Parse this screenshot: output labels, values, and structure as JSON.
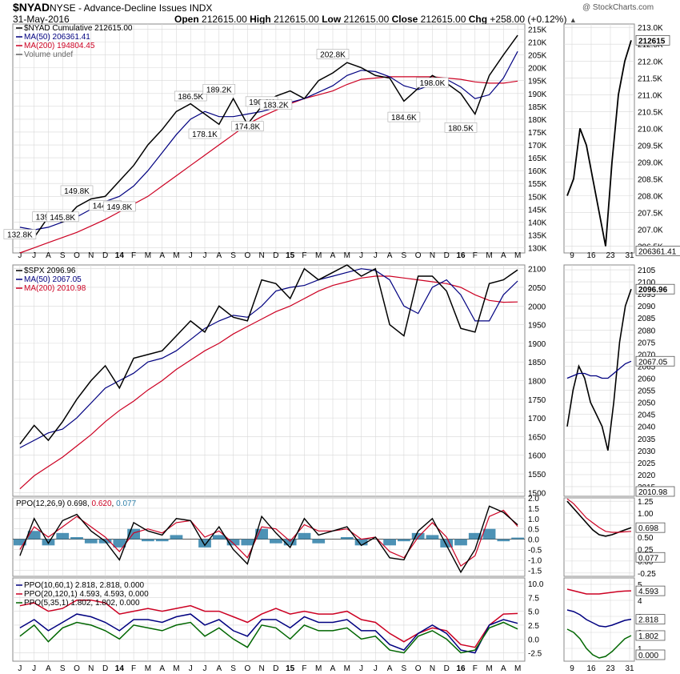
{
  "header": {
    "symbol": "$NYAD",
    "description": "NYSE - Advance-Decline Issues INDX",
    "brand": "@ StockCharts.com",
    "date": "31-May-2016",
    "open_label": "Open",
    "open": "212615.00",
    "high_label": "High",
    "high": "212615.00",
    "low_label": "Low",
    "low": "212615.00",
    "close_label": "Close",
    "close": "212615.00",
    "chg_label": "Chg",
    "chg": "+258.00 (+0.12%)"
  },
  "colors": {
    "price": "#000000",
    "ma50": "#000080",
    "ma200": "#cc0022",
    "down": "#cc0022",
    "hist": "#2e7fa8",
    "ppo_signal": "#cc0022",
    "ppo_green": "#006600",
    "grid": "#d8d8d8"
  },
  "x_axis_labels": [
    "J",
    "J",
    "A",
    "S",
    "O",
    "N",
    "D",
    "14",
    "F",
    "M",
    "A",
    "M",
    "J",
    "J",
    "A",
    "S",
    "O",
    "N",
    "D",
    "15",
    "F",
    "M",
    "A",
    "M",
    "J",
    "J",
    "A",
    "S",
    "O",
    "N",
    "D",
    "16",
    "F",
    "M",
    "A",
    "M"
  ],
  "detail_x_labels": [
    "9",
    "16",
    "23",
    "31"
  ],
  "panels": {
    "nyad": {
      "legend": [
        "$NYAD Cumulative 212615.00",
        "MA(50) 206361.41",
        "MA(200) 194804.45",
        "Volume undef"
      ],
      "annotations": [
        "132.8K",
        "139.6K",
        "145.8K",
        "149.8K",
        "144.0K",
        "149.8K",
        "186.5K",
        "178.1K",
        "189.2K",
        "174.8K",
        "190.6K",
        "183.2K",
        "202.8K",
        "184.6K",
        "198.0K",
        "180.5K"
      ],
      "y_ticks": [
        "215K",
        "210K",
        "205K",
        "200K",
        "195K",
        "190K",
        "185K",
        "180K",
        "175K",
        "170K",
        "165K",
        "160K",
        "155K",
        "150K",
        "145K",
        "140K",
        "135K",
        "130K"
      ],
      "detail_y_ticks": [
        "213.0K",
        "212.5K",
        "212.0K",
        "211.5K",
        "211.0K",
        "210.5K",
        "210.0K",
        "209.5K",
        "209.0K",
        "208.5K",
        "208.0K",
        "207.5K",
        "207.0K",
        "206.5K"
      ],
      "last_label": "212615",
      "ma50_label": "206361.41"
    },
    "spx": {
      "legend": [
        "$SPX 2096.96",
        "MA(50) 2067.05",
        "MA(200) 2010.98"
      ],
      "y_ticks": [
        "2100",
        "2050",
        "2000",
        "1950",
        "1900",
        "1850",
        "1800",
        "1750",
        "1700",
        "1650",
        "1600",
        "1550",
        "1500"
      ],
      "detail_y_ticks": [
        "2105",
        "2100",
        "2095",
        "2090",
        "2085",
        "2080",
        "2075",
        "2070",
        "2065",
        "2060",
        "2055",
        "2050",
        "2045",
        "2040",
        "2035",
        "2030",
        "2025",
        "2020",
        "2015"
      ],
      "last_label": "2096.96",
      "ma50_label": "2067.05",
      "ma200_label": "2010.98"
    },
    "ppo": {
      "legend_prefix": "PPO(12,26,9)",
      "v1": "0.698",
      "v2": "0.620",
      "v3": "0.077",
      "y_ticks": [
        "2.0",
        "1.5",
        "1.0",
        "0.5",
        "0.0",
        "-0.5",
        "-1.0",
        "-1.5"
      ],
      "detail_y_ticks": [
        "1.25",
        "1.00",
        "0.75",
        "0.50",
        "0.25",
        "0.00",
        "-0.25"
      ],
      "labels": [
        "0.698",
        "0.077"
      ]
    },
    "ppo3": {
      "legend": [
        {
          "prefix": "PPO(10,60,1)",
          "values": "2.818, 2.818, 0.000"
        },
        {
          "prefix": "PPO(20,120,1)",
          "values": "4.593, 4.593, 0.000"
        },
        {
          "prefix": "PPO(5,35,1)",
          "values": "1.802, 1.802, 0.000"
        }
      ],
      "y_ticks": [
        "10.0",
        "7.5",
        "5.0",
        "2.5",
        "0.0",
        "-2.5"
      ],
      "detail_y_ticks": [
        "5",
        "4",
        "3",
        "2",
        "1"
      ],
      "labels": [
        "4.593",
        "2.818",
        "1.802",
        "0.000"
      ]
    }
  },
  "chart_data": [
    {
      "type": "line",
      "title": "$NYAD Cumulative",
      "x": [
        "Jun 2013",
        "Jul 2013",
        "Aug 2013",
        "Sep 2013",
        "Oct 2013",
        "Nov 2013",
        "Dec 2013",
        "Jan 2014",
        "Feb 2014",
        "Mar 2014",
        "Apr 2014",
        "May 2014",
        "Jun 2014",
        "Jul 2014",
        "Aug 2014",
        "Sep 2014",
        "Oct 2014",
        "Nov 2014",
        "Dec 2014",
        "Jan 2015",
        "Feb 2015",
        "Mar 2015",
        "Apr 2015",
        "May 2015",
        "Jun 2015",
        "Jul 2015",
        "Aug 2015",
        "Sep 2015",
        "Oct 2015",
        "Nov 2015",
        "Dec 2015",
        "Jan 2016",
        "Feb 2016",
        "Mar 2016",
        "Apr 2016",
        "May 2016"
      ],
      "series": [
        {
          "name": "$NYAD Cumulative",
          "values": [
            137000,
            134000,
            142000,
            140000,
            146000,
            149000,
            150000,
            156000,
            162000,
            170000,
            176000,
            183000,
            186000,
            182000,
            178000,
            188000,
            178000,
            185000,
            189000,
            191000,
            188000,
            195000,
            198000,
            202000,
            200000,
            197000,
            196000,
            187000,
            192000,
            197000,
            194000,
            190000,
            182000,
            197000,
            205000,
            212600
          ]
        },
        {
          "name": "MA(50)",
          "values": [
            138000,
            137000,
            138000,
            140000,
            142000,
            145000,
            148000,
            150000,
            154000,
            160000,
            167000,
            174000,
            180000,
            183000,
            181000,
            181000,
            182000,
            183000,
            184500,
            186500,
            188000,
            190500,
            193000,
            197000,
            199000,
            198500,
            196500,
            193000,
            191500,
            193500,
            195500,
            192500,
            188000,
            189500,
            196000,
            206361
          ]
        },
        {
          "name": "MA(200)",
          "values": [
            128000,
            130000,
            132000,
            134000,
            136000,
            138500,
            141000,
            144000,
            147000,
            150000,
            154000,
            158000,
            162000,
            166000,
            170000,
            174000,
            178000,
            181000,
            183500,
            186000,
            188000,
            189500,
            191000,
            193500,
            195500,
            196000,
            196500,
            196500,
            196500,
            196500,
            196000,
            195500,
            194500,
            194000,
            194000,
            194804
          ]
        }
      ],
      "ylim": [
        128000,
        217000
      ],
      "annotations": [
        {
          "x": "Jun 2013",
          "y": 132800,
          "label": "132.8K"
        },
        {
          "x": "Aug 2013",
          "y": 139600,
          "label": "139.6K"
        },
        {
          "x": "Sep 2013",
          "y": 145800,
          "label": "145.8K"
        },
        {
          "x": "Oct 2013",
          "y": 149800,
          "label": "149.8K"
        },
        {
          "x": "Dec 2013",
          "y": 144000,
          "label": "144.0K"
        },
        {
          "x": "Jan 2014",
          "y": 149800,
          "label": "149.8K"
        },
        {
          "x": "Jun 2014",
          "y": 186500,
          "label": "186.5K"
        },
        {
          "x": "Jul 2014",
          "y": 178100,
          "label": "178.1K"
        },
        {
          "x": "Aug 2014",
          "y": 189200,
          "label": "189.2K"
        },
        {
          "x": "Oct 2014",
          "y": 174800,
          "label": "174.8K"
        },
        {
          "x": "Nov 2014",
          "y": 190600,
          "label": "190.6K"
        },
        {
          "x": "Dec 2014",
          "y": 183200,
          "label": "183.2K"
        },
        {
          "x": "Apr 2015",
          "y": 202800,
          "label": "202.8K"
        },
        {
          "x": "Sep 2015",
          "y": 184600,
          "label": "184.6K"
        },
        {
          "x": "Nov 2015",
          "y": 198000,
          "label": "198.0K"
        },
        {
          "x": "Jan 2016",
          "y": 180500,
          "label": "180.5K"
        }
      ]
    },
    {
      "type": "line",
      "title": "$SPX",
      "x": [
        "Jun 2013",
        "Jul 2013",
        "Aug 2013",
        "Sep 2013",
        "Oct 2013",
        "Nov 2013",
        "Dec 2013",
        "Jan 2014",
        "Feb 2014",
        "Mar 2014",
        "Apr 2014",
        "May 2014",
        "Jun 2014",
        "Jul 2014",
        "Aug 2014",
        "Sep 2014",
        "Oct 2014",
        "Nov 2014",
        "Dec 2014",
        "Jan 2015",
        "Feb 2015",
        "Mar 2015",
        "Apr 2015",
        "May 2015",
        "Jun 2015",
        "Jul 2015",
        "Aug 2015",
        "Sep 2015",
        "Oct 2015",
        "Nov 2015",
        "Dec 2015",
        "Jan 2016",
        "Feb 2016",
        "Mar 2016",
        "Apr 2016",
        "May 2016"
      ],
      "series": [
        {
          "name": "$SPX",
          "values": [
            1630,
            1680,
            1640,
            1690,
            1750,
            1800,
            1840,
            1780,
            1860,
            1870,
            1880,
            1920,
            1960,
            1930,
            2000,
            1970,
            1960,
            2070,
            2060,
            2020,
            2100,
            2070,
            2090,
            2110,
            2080,
            2100,
            1950,
            1920,
            2080,
            2080,
            2040,
            1940,
            1930,
            2060,
            2070,
            2096.96
          ]
        },
        {
          "name": "MA(50)",
          "values": [
            1620,
            1640,
            1660,
            1670,
            1700,
            1740,
            1780,
            1800,
            1820,
            1850,
            1860,
            1880,
            1910,
            1940,
            1960,
            1975,
            1970,
            2000,
            2040,
            2050,
            2055,
            2070,
            2080,
            2090,
            2100,
            2095,
            2070,
            2000,
            1980,
            2050,
            2070,
            2030,
            1960,
            1960,
            2030,
            2067.05
          ]
        },
        {
          "name": "MA(200)",
          "values": [
            1510,
            1545,
            1570,
            1595,
            1625,
            1655,
            1690,
            1720,
            1745,
            1775,
            1800,
            1830,
            1855,
            1880,
            1900,
            1925,
            1945,
            1965,
            1985,
            2000,
            2020,
            2040,
            2055,
            2065,
            2075,
            2080,
            2080,
            2075,
            2070,
            2065,
            2060,
            2050,
            2030,
            2015,
            2010,
            2010.98
          ]
        }
      ],
      "ylim": [
        1490,
        2110
      ]
    },
    {
      "type": "line",
      "title": "PPO(12,26,9)",
      "series": [
        {
          "name": "PPO(12,26,9)",
          "values": [
            -0.8,
            1.0,
            -0.2,
            0.9,
            1.2,
            0.4,
            -0.1,
            -1.0,
            0.8,
            0.4,
            0.2,
            1.0,
            0.9,
            -0.3,
            0.6,
            -0.5,
            -1.2,
            1.1,
            0.3,
            -0.4,
            1.0,
            0.2,
            0.4,
            0.6,
            -0.3,
            0.1,
            -0.9,
            -1.0,
            0.4,
            1.0,
            -0.3,
            -1.6,
            -0.5,
            1.6,
            1.3,
            0.698
          ]
        },
        {
          "name": "Signal",
          "values": [
            -0.5,
            0.6,
            0.1,
            0.6,
            1.1,
            0.6,
            0.1,
            -0.6,
            0.3,
            0.5,
            0.3,
            0.8,
            0.9,
            0.1,
            0.4,
            -0.2,
            -0.9,
            0.6,
            0.5,
            -0.1,
            0.7,
            0.4,
            0.4,
            0.5,
            0.0,
            0.1,
            -0.6,
            -0.9,
            0.1,
            0.8,
            0.1,
            -1.3,
            -0.8,
            1.1,
            1.4,
            0.62
          ]
        },
        {
          "name": "Histogram",
          "values": [
            -0.3,
            0.4,
            -0.3,
            0.3,
            0.1,
            -0.2,
            -0.2,
            -0.4,
            0.5,
            -0.1,
            -0.1,
            0.2,
            0.0,
            -0.4,
            0.2,
            -0.3,
            -0.3,
            0.5,
            -0.2,
            -0.3,
            0.3,
            -0.2,
            0.0,
            0.1,
            -0.3,
            0.0,
            -0.3,
            -0.1,
            0.3,
            0.2,
            -0.4,
            -0.3,
            0.3,
            0.5,
            -0.1,
            0.077
          ]
        }
      ],
      "ylim": [
        -1.8,
        2.0
      ]
    },
    {
      "type": "line",
      "title": "PPO",
      "series": [
        {
          "name": "PPO(10,60,1)",
          "values": [
            2.0,
            3.5,
            1.5,
            3.0,
            4.5,
            4.0,
            3.0,
            1.5,
            3.5,
            3.5,
            3.0,
            4.0,
            4.5,
            2.5,
            3.5,
            1.5,
            0.5,
            3.5,
            3.5,
            2.0,
            4.0,
            3.0,
            3.0,
            3.5,
            1.5,
            1.5,
            -1.0,
            -2.0,
            1.0,
            2.5,
            1.0,
            -2.0,
            -2.5,
            2.5,
            3.5,
            2.818
          ]
        },
        {
          "name": "PPO(20,120,1)",
          "values": [
            6.0,
            6.5,
            5.0,
            5.5,
            7.0,
            7.0,
            6.5,
            4.5,
            5.0,
            5.5,
            5.0,
            5.5,
            6.0,
            5.0,
            5.0,
            4.0,
            3.0,
            4.5,
            5.5,
            4.5,
            5.0,
            4.5,
            4.5,
            5.0,
            3.5,
            3.0,
            1.0,
            -0.5,
            1.0,
            2.0,
            1.5,
            -1.0,
            -1.5,
            2.5,
            4.5,
            4.593
          ]
        },
        {
          "name": "PPO(5,35,1)",
          "values": [
            0.5,
            2.5,
            -0.5,
            2.0,
            3.0,
            2.5,
            1.5,
            0.0,
            2.5,
            2.0,
            1.5,
            2.5,
            3.0,
            0.5,
            2.0,
            0.0,
            -1.5,
            2.5,
            2.0,
            0.0,
            2.5,
            1.5,
            1.5,
            2.0,
            0.0,
            0.5,
            -2.0,
            -2.5,
            0.5,
            1.5,
            0.0,
            -2.5,
            -2.0,
            2.0,
            3.0,
            1.802
          ]
        }
      ],
      "ylim": [
        -4.0,
        11.0
      ]
    }
  ]
}
